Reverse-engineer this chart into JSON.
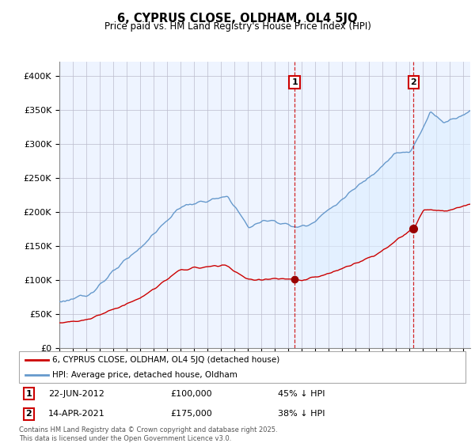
{
  "title": "6, CYPRUS CLOSE, OLDHAM, OL4 5JQ",
  "subtitle": "Price paid vs. HM Land Registry's House Price Index (HPI)",
  "legend_line1": "6, CYPRUS CLOSE, OLDHAM, OL4 5JQ (detached house)",
  "legend_line2": "HPI: Average price, detached house, Oldham",
  "sale1_date": "22-JUN-2012",
  "sale1_price": 100000,
  "sale1_pct": "45% ↓ HPI",
  "sale2_date": "14-APR-2021",
  "sale2_price": 175000,
  "sale2_pct": "38% ↓ HPI",
  "footnote": "Contains HM Land Registry data © Crown copyright and database right 2025.\nThis data is licensed under the Open Government Licence v3.0.",
  "red_color": "#cc0000",
  "blue_color": "#6699cc",
  "fill_color": "#ddeeff",
  "background_color": "#eef4ff",
  "marker_color": "#990000",
  "ylim": [
    0,
    420000
  ],
  "yticks": [
    0,
    50000,
    100000,
    150000,
    200000,
    250000,
    300000,
    350000,
    400000
  ],
  "ylabels": [
    "£0",
    "£50K",
    "£100K",
    "£150K",
    "£200K",
    "£250K",
    "£300K",
    "£350K",
    "£400K"
  ],
  "sale1_x": 2012.46,
  "sale2_x": 2021.29
}
